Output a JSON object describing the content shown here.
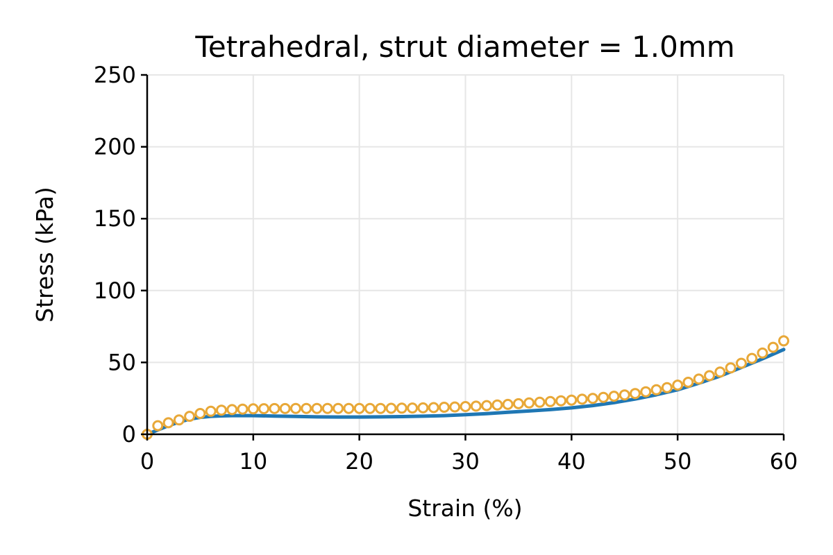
{
  "chart_data": {
    "type": "line",
    "title": "Tetrahedral, strut diameter = 1.0mm",
    "xlabel": "Strain (%)",
    "ylabel": "Stress (kPa)",
    "xlim": [
      0,
      60
    ],
    "ylim": [
      0,
      250
    ],
    "xticks": [
      0,
      10,
      20,
      30,
      40,
      50,
      60
    ],
    "yticks": [
      0,
      50,
      100,
      150,
      200,
      250
    ],
    "grid": true,
    "series": [
      {
        "style": "line",
        "color": "#1f77b4",
        "x": [
          0,
          1,
          2,
          3,
          4,
          5,
          6,
          7,
          8,
          9,
          10,
          12,
          14,
          16,
          18,
          20,
          22,
          24,
          26,
          28,
          30,
          32,
          34,
          36,
          38,
          40,
          42,
          44,
          46,
          48,
          50,
          52,
          54,
          56,
          58,
          60
        ],
        "y": [
          0,
          3,
          6,
          8.5,
          10.5,
          11.8,
          12.5,
          12.8,
          13,
          13,
          13,
          12.7,
          12.4,
          12.1,
          12,
          12,
          12.1,
          12.3,
          12.6,
          13,
          13.6,
          14.4,
          15.3,
          16.2,
          17.2,
          18.4,
          20,
          22,
          24.5,
          27.5,
          31,
          35.5,
          40.5,
          46.5,
          52.5,
          59
        ]
      },
      {
        "style": "markers",
        "color": "#e8a838",
        "x": [
          0,
          1,
          2,
          3,
          4,
          5,
          6,
          7,
          8,
          9,
          10,
          11,
          12,
          13,
          14,
          15,
          16,
          17,
          18,
          19,
          20,
          21,
          22,
          23,
          24,
          25,
          26,
          27,
          28,
          29,
          30,
          31,
          32,
          33,
          34,
          35,
          36,
          37,
          38,
          39,
          40,
          41,
          42,
          43,
          44,
          45,
          46,
          47,
          48,
          49,
          50,
          51,
          52,
          53,
          54,
          55,
          56,
          57,
          58,
          59,
          60
        ],
        "y": [
          0,
          6,
          8,
          10,
          12.5,
          14.5,
          16,
          16.8,
          17.2,
          17.5,
          17.7,
          17.8,
          17.9,
          17.9,
          18,
          18,
          18,
          18,
          18,
          18,
          18,
          18,
          18,
          18.1,
          18.2,
          18.3,
          18.4,
          18.6,
          18.8,
          19,
          19.3,
          19.6,
          20,
          20.4,
          20.8,
          21.3,
          21.8,
          22.3,
          22.8,
          23.3,
          23.8,
          24.4,
          25,
          25.7,
          26.5,
          27.4,
          28.4,
          29.6,
          31,
          32.5,
          34.2,
          36.2,
          38.4,
          40.8,
          43.3,
          46.2,
          49.4,
          52.8,
          56.5,
          60.5,
          65
        ]
      }
    ]
  }
}
